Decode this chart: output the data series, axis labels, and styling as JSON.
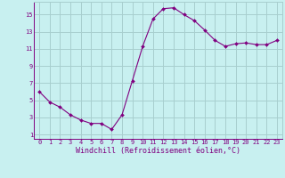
{
  "x": [
    0,
    1,
    2,
    3,
    4,
    5,
    6,
    7,
    8,
    9,
    10,
    11,
    12,
    13,
    14,
    15,
    16,
    17,
    18,
    19,
    20,
    21,
    22,
    23
  ],
  "y": [
    6.0,
    4.8,
    4.2,
    3.3,
    2.7,
    2.3,
    2.3,
    1.6,
    3.3,
    7.3,
    11.3,
    14.5,
    15.7,
    15.8,
    15.0,
    14.3,
    13.2,
    12.0,
    11.3,
    11.6,
    11.7,
    11.5,
    11.5,
    12.0
  ],
  "line_color": "#800080",
  "marker": "D",
  "marker_size": 2.0,
  "bg_color": "#c8f0f0",
  "grid_color": "#a8cece",
  "xlabel": "Windchill (Refroidissement éolien,°C)",
  "yticks": [
    1,
    3,
    5,
    7,
    9,
    11,
    13,
    15
  ],
  "xticks": [
    0,
    1,
    2,
    3,
    4,
    5,
    6,
    7,
    8,
    9,
    10,
    11,
    12,
    13,
    14,
    15,
    16,
    17,
    18,
    19,
    20,
    21,
    22,
    23
  ],
  "xlim": [
    -0.5,
    23.5
  ],
  "ylim": [
    0.5,
    16.5
  ],
  "tick_fontsize": 5.0,
  "xlabel_fontsize": 6.0,
  "label_color": "#800080",
  "tick_color": "#800080",
  "linewidth": 0.8,
  "spine_color": "#800080"
}
